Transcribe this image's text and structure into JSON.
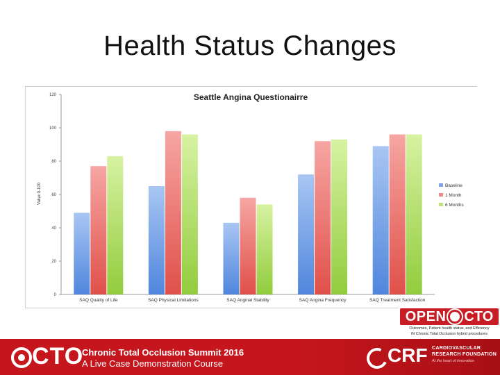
{
  "slide": {
    "title": "Health Status Changes"
  },
  "chart_data": {
    "type": "bar",
    "title": "Seattle Angina Questionairre",
    "xlabel": "",
    "ylabel": "Value 0-100",
    "ylim": [
      0,
      120
    ],
    "yticks": [
      "0",
      "20",
      "40",
      "60",
      "80",
      "100",
      "120"
    ],
    "categories": [
      "SAQ Quality of Life",
      "SAQ Physical Limitations",
      "SAQ Anginal Stability",
      "SAQ Angina Frequency",
      "SAQ Treatment Satisfaction"
    ],
    "series": [
      {
        "name": "Baseline",
        "color": "#7ea6e6",
        "values": [
          49,
          65,
          43,
          72,
          89
        ]
      },
      {
        "name": "1 Month",
        "color": "#f08a86",
        "values": [
          77,
          98,
          58,
          92,
          96
        ]
      },
      {
        "name": "6 Months",
        "color": "#bde27a",
        "values": [
          83,
          96,
          54,
          93,
          96
        ]
      }
    ],
    "legend_position": "right"
  },
  "open_cto": {
    "brand_open": "OPEN",
    "brand_cto": "CTO",
    "tagline_1": "Outcomes, Patient health status, and Efficiency",
    "tagline_2": "iN Chronic Total Occlusion hybrid procedures"
  },
  "footer": {
    "cto_logo": "CTO",
    "line1": "Chronic Total Occlusion Summit 2016",
    "line2": "A Live Case Demonstration Course",
    "crf_logo": "CRF",
    "crf_name_1": "CARDIOVASCULAR",
    "crf_name_2": "RESEARCH FOUNDATION",
    "crf_tagline": "At the heart of innovation"
  }
}
